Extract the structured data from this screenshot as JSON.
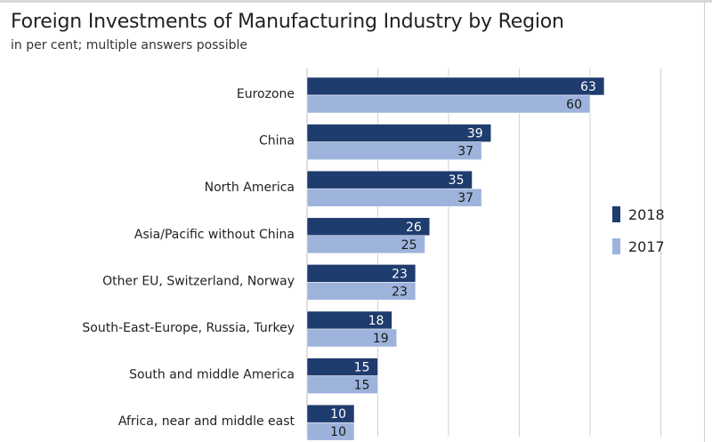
{
  "chart_data": {
    "type": "bar",
    "orientation": "horizontal",
    "title": "Foreign Investments of Manufacturing Industry by Region",
    "subtitle": "in per cent; multiple answers possible",
    "categories": [
      "Eurozone",
      "China",
      "North America",
      "Asia/Pacific without China",
      "Other EU, Switzerland, Norway",
      "South-East-Europe, Russia, Turkey",
      "South and middle America",
      "Africa, near and middle east"
    ],
    "series": [
      {
        "name": "2018",
        "color": "#1f3c6e",
        "label_color": "#ffffff",
        "values": [
          63,
          39,
          35,
          26,
          23,
          18,
          15,
          10
        ]
      },
      {
        "name": "2017",
        "color": "#9db3dc",
        "label_color": "#1a1a1a",
        "values": [
          60,
          37,
          37,
          25,
          23,
          19,
          15,
          10
        ]
      }
    ],
    "xlim": [
      0,
      75
    ],
    "grid": true,
    "legend_position": "right"
  }
}
